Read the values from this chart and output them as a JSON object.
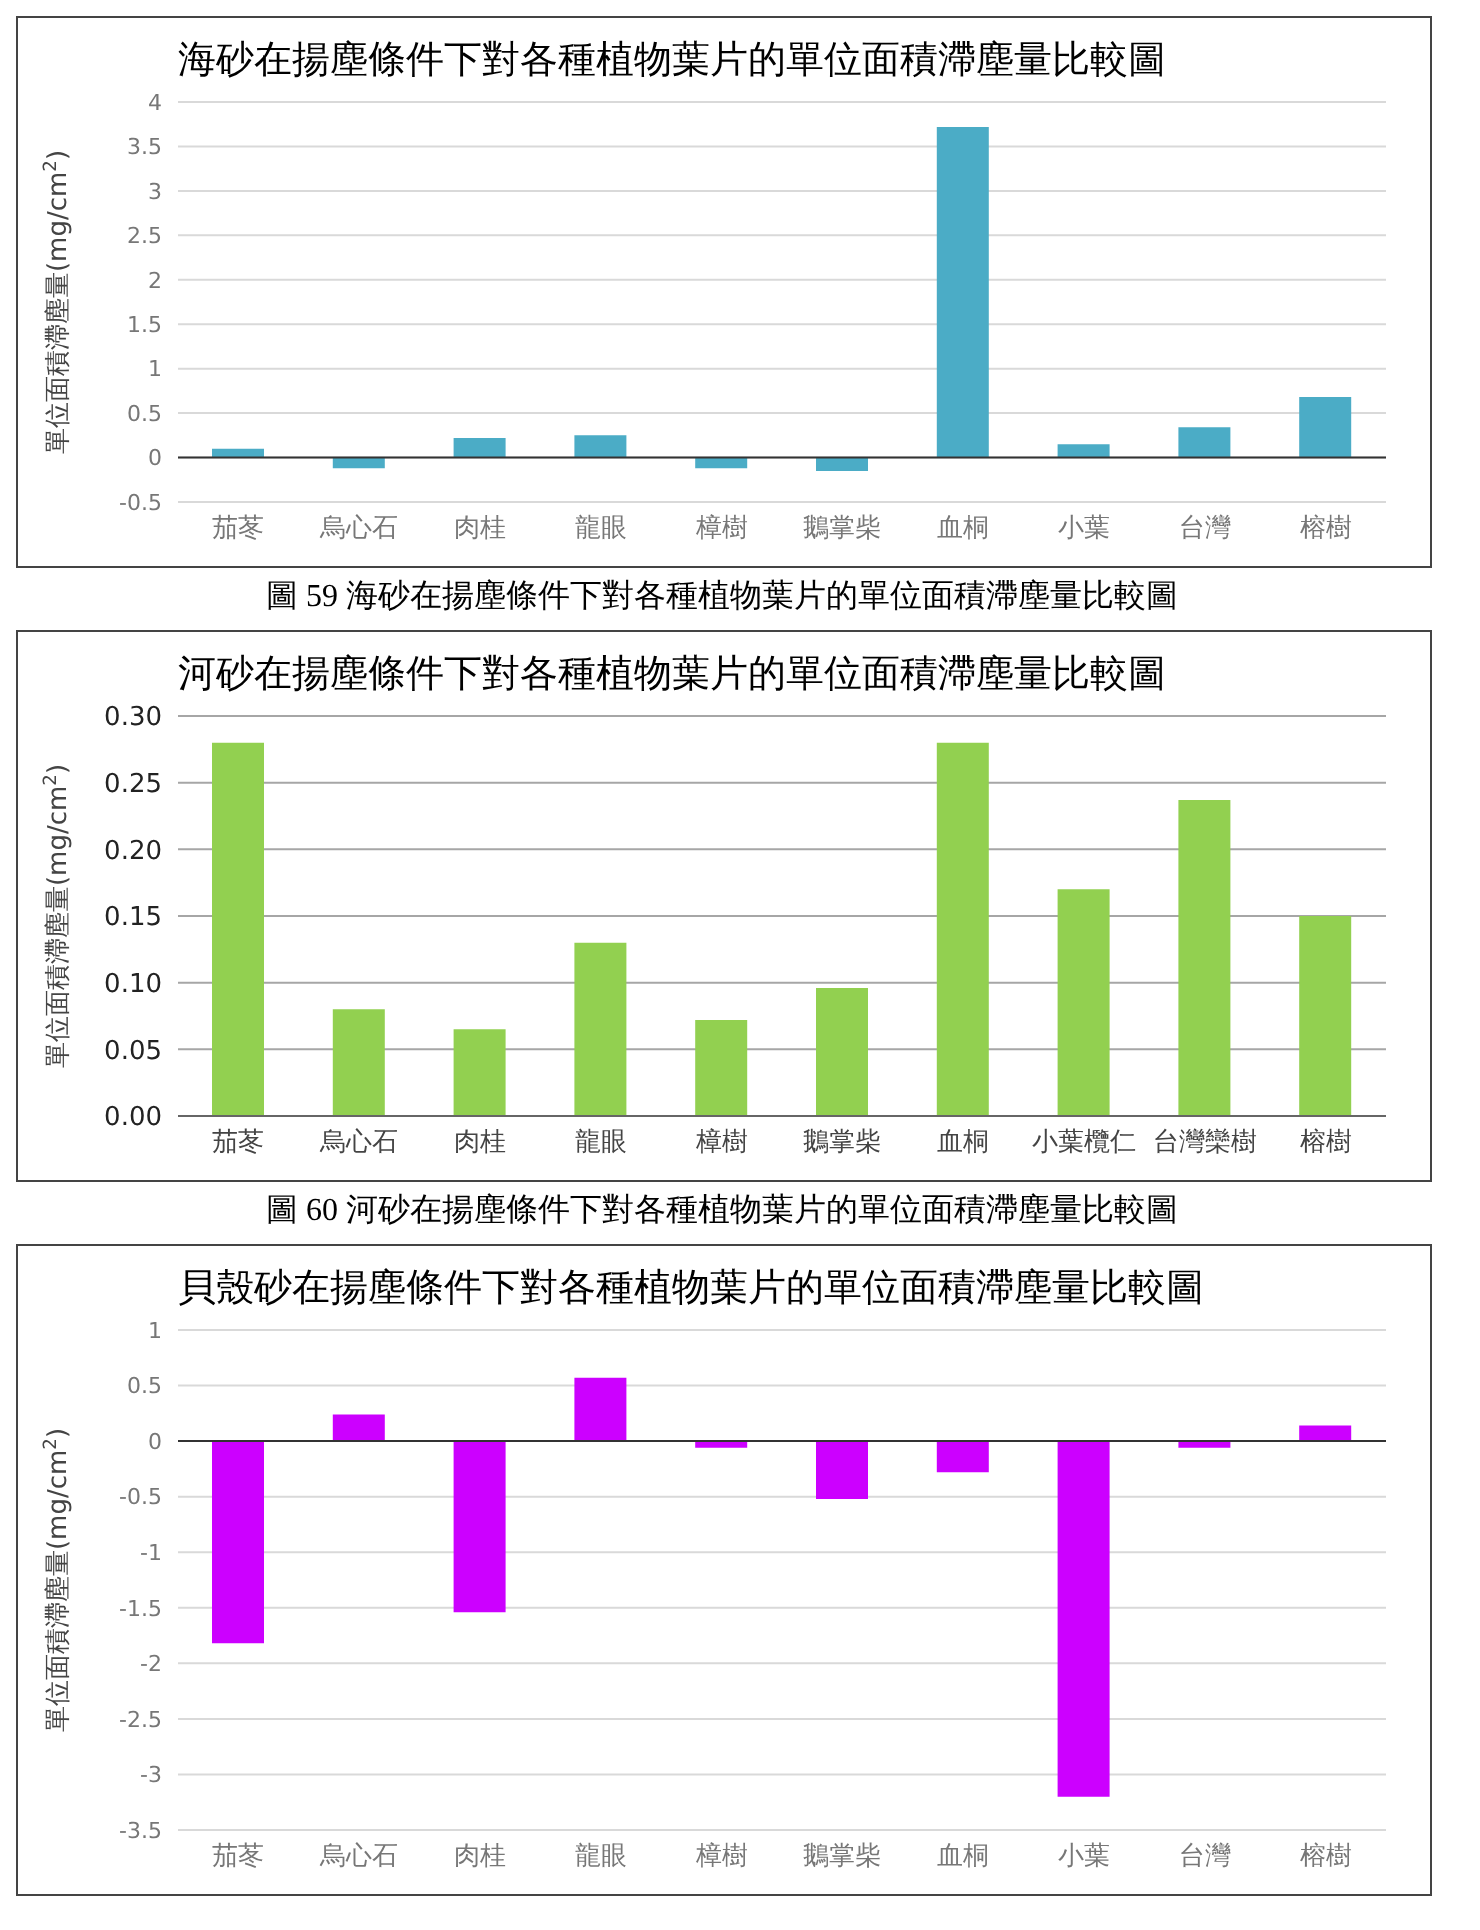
{
  "chart_data": [
    {
      "type": "bar",
      "title": "海砂在揚塵條件下對各種植物葉片的單位面積滯塵量比較圖",
      "ylabel": "單位面積滯塵量(mg/cm$^{2}$)",
      "categories": [
        "茄苳",
        "烏心石",
        "肉桂",
        "龍眼",
        "樟樹",
        "鵝掌柴",
        "血桐",
        "小葉",
        "台灣",
        "榕樹"
      ],
      "values": [
        0.1,
        -0.12,
        0.22,
        0.25,
        -0.12,
        -0.15,
        3.72,
        0.15,
        0.34,
        0.68
      ],
      "color": "#4bacc6",
      "ylim": [
        -0.5,
        4
      ],
      "yticks": [
        -0.5,
        0,
        0.5,
        1,
        1.5,
        2,
        2.5,
        3,
        3.5,
        4
      ],
      "grid": "y",
      "legend": false,
      "annotations": [
        "圖 59  海砂在揚塵條件下對各種植物葉片的單位面積滯塵量比較圖"
      ]
    },
    {
      "type": "bar",
      "title": "河砂在揚塵條件下對各種植物葉片的單位面積滯塵量比較圖",
      "ylabel": "單位面積滯塵量(mg/cm$^{2}$)",
      "categories": [
        "茄苳",
        "烏心石",
        "肉桂",
        "龍眼",
        "樟樹",
        "鵝掌柴",
        "血桐",
        "小葉欖仁",
        "台灣欒樹",
        "榕樹"
      ],
      "values": [
        0.28,
        0.08,
        0.065,
        0.13,
        0.072,
        0.096,
        0.28,
        0.17,
        0.237,
        0.15
      ],
      "color": "#92d050",
      "ylim": [
        0,
        0.3
      ],
      "yticks": [
        {
          "value": 0,
          "label": "0.00"
        },
        {
          "value": 0.05,
          "label": "0.05"
        },
        {
          "value": 0.1,
          "label": "0.10"
        },
        {
          "value": 0.15,
          "label": "0.15"
        },
        {
          "value": 0.2,
          "label": "0.20"
        },
        {
          "value": 0.25,
          "label": "0.25"
        },
        {
          "value": 0.3,
          "label": "0.30"
        }
      ],
      "grid": "y",
      "legend": false,
      "annotations": [
        "圖 60  河砂在揚塵條件下對各種植物葉片的單位面積滯塵量比較圖"
      ]
    },
    {
      "type": "bar",
      "title": "貝殼砂在揚塵條件下對各種植物葉片的單位面積滯塵量比較圖",
      "ylabel": "單位面積滯塵量(mg/cm$^{2}$)",
      "categories": [
        "茄苳",
        "烏心石",
        "肉桂",
        "龍眼",
        "樟樹",
        "鵝掌柴",
        "血桐",
        "小葉",
        "台灣",
        "榕樹"
      ],
      "values": [
        -1.82,
        0.24,
        -1.54,
        0.57,
        -0.06,
        -0.52,
        -0.28,
        -3.2,
        -0.06,
        0.14
      ],
      "color": "#cc00ff",
      "ylim": [
        -3.5,
        1
      ],
      "yticks": [
        -3.5,
        -3,
        -2.5,
        -2,
        -1.5,
        -1,
        -0.5,
        0,
        0.5,
        1
      ],
      "grid": "y",
      "legend": false
    }
  ]
}
